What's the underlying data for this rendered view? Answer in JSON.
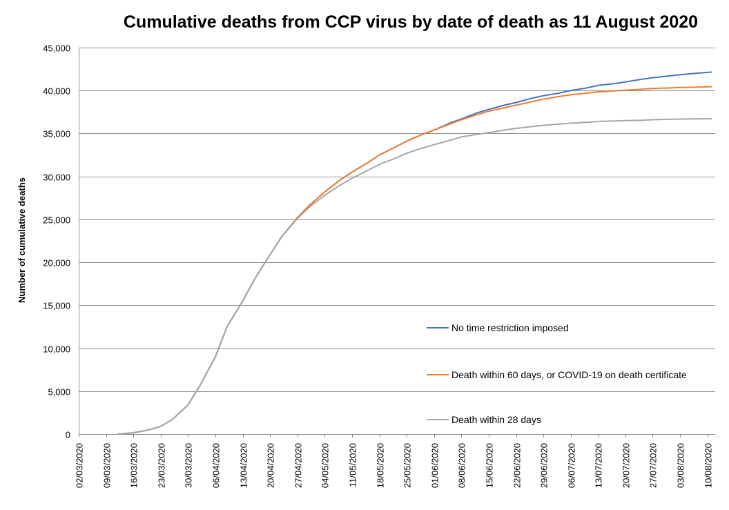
{
  "chart_data": {
    "type": "line",
    "title": "Cumulative deaths from CCP virus by date of death as 11 August 2020",
    "xlabel": "",
    "ylabel": "Number of cumulative deaths",
    "ylim": [
      0,
      45000
    ],
    "y_ticks": [
      0,
      5000,
      10000,
      15000,
      20000,
      25000,
      30000,
      35000,
      40000,
      45000
    ],
    "y_tick_labels": [
      "0",
      "5,000",
      "10,000",
      "15,000",
      "20,000",
      "25,000",
      "30,000",
      "35,000",
      "40,000",
      "45,000"
    ],
    "xlim": [
      "02/03/2020",
      "11/08/2020"
    ],
    "x_tick_labels": [
      "02/03/2020",
      "09/03/2020",
      "16/03/2020",
      "23/03/2020",
      "30/03/2020",
      "06/04/2020",
      "13/04/2020",
      "20/04/2020",
      "27/04/2020",
      "04/05/2020",
      "11/05/2020",
      "18/05/2020",
      "25/05/2020",
      "01/06/2020",
      "08/06/2020",
      "15/06/2020",
      "22/06/2020",
      "29/06/2020",
      "06/07/2020",
      "13/07/2020",
      "20/07/2020",
      "27/07/2020",
      "03/08/2020",
      "10/08/2020"
    ],
    "grid": true,
    "legend_position": "inside-bottom-right",
    "series": [
      {
        "name": "No time restriction imposed",
        "color": "#4472c4",
        "points": [
          [
            "12/03/2020",
            0
          ],
          [
            "16/03/2020",
            150
          ],
          [
            "20/03/2020",
            500
          ],
          [
            "23/03/2020",
            900
          ],
          [
            "26/03/2020",
            1700
          ],
          [
            "30/03/2020",
            3400
          ],
          [
            "02/04/2020",
            5600
          ],
          [
            "06/04/2020",
            9000
          ],
          [
            "09/04/2020",
            12500
          ],
          [
            "13/04/2020",
            15500
          ],
          [
            "16/04/2020",
            18000
          ],
          [
            "20/04/2020",
            20900
          ],
          [
            "23/04/2020",
            23000
          ],
          [
            "27/04/2020",
            25200
          ],
          [
            "30/04/2020",
            26600
          ],
          [
            "04/05/2020",
            28200
          ],
          [
            "08/05/2020",
            29600
          ],
          [
            "11/05/2020",
            30500
          ],
          [
            "15/05/2020",
            31600
          ],
          [
            "18/05/2020",
            32500
          ],
          [
            "22/05/2020",
            33400
          ],
          [
            "25/05/2020",
            34100
          ],
          [
            "29/05/2020",
            34900
          ],
          [
            "01/06/2020",
            35400
          ],
          [
            "05/06/2020",
            36200
          ],
          [
            "08/06/2020",
            36700
          ],
          [
            "12/06/2020",
            37400
          ],
          [
            "15/06/2020",
            37800
          ],
          [
            "19/06/2020",
            38300
          ],
          [
            "22/06/2020",
            38600
          ],
          [
            "26/06/2020",
            39100
          ],
          [
            "29/06/2020",
            39400
          ],
          [
            "03/07/2020",
            39700
          ],
          [
            "06/07/2020",
            40000
          ],
          [
            "10/07/2020",
            40300
          ],
          [
            "13/07/2020",
            40600
          ],
          [
            "17/07/2020",
            40800
          ],
          [
            "20/07/2020",
            41000
          ],
          [
            "24/07/2020",
            41300
          ],
          [
            "27/07/2020",
            41500
          ],
          [
            "31/07/2020",
            41700
          ],
          [
            "03/08/2020",
            41850
          ],
          [
            "07/08/2020",
            42000
          ],
          [
            "11/08/2020",
            42150
          ]
        ]
      },
      {
        "name": "Death within 60 days, or COVID-19 on death certificate",
        "color": "#ed7d31",
        "points": [
          [
            "12/03/2020",
            0
          ],
          [
            "16/03/2020",
            150
          ],
          [
            "20/03/2020",
            500
          ],
          [
            "23/03/2020",
            900
          ],
          [
            "26/03/2020",
            1700
          ],
          [
            "30/03/2020",
            3400
          ],
          [
            "02/04/2020",
            5600
          ],
          [
            "06/04/2020",
            9000
          ],
          [
            "09/04/2020",
            12500
          ],
          [
            "13/04/2020",
            15500
          ],
          [
            "16/04/2020",
            18000
          ],
          [
            "20/04/2020",
            20900
          ],
          [
            "23/04/2020",
            23000
          ],
          [
            "27/04/2020",
            25200
          ],
          [
            "30/04/2020",
            26600
          ],
          [
            "04/05/2020",
            28200
          ],
          [
            "08/05/2020",
            29600
          ],
          [
            "11/05/2020",
            30500
          ],
          [
            "15/05/2020",
            31600
          ],
          [
            "18/05/2020",
            32500
          ],
          [
            "22/05/2020",
            33400
          ],
          [
            "25/05/2020",
            34100
          ],
          [
            "29/05/2020",
            34900
          ],
          [
            "01/06/2020",
            35400
          ],
          [
            "05/06/2020",
            36100
          ],
          [
            "08/06/2020",
            36600
          ],
          [
            "12/06/2020",
            37200
          ],
          [
            "15/06/2020",
            37600
          ],
          [
            "19/06/2020",
            38000
          ],
          [
            "22/06/2020",
            38300
          ],
          [
            "26/06/2020",
            38700
          ],
          [
            "29/06/2020",
            39000
          ],
          [
            "03/07/2020",
            39300
          ],
          [
            "06/07/2020",
            39500
          ],
          [
            "10/07/2020",
            39700
          ],
          [
            "13/07/2020",
            39850
          ],
          [
            "17/07/2020",
            39950
          ],
          [
            "20/07/2020",
            40050
          ],
          [
            "24/07/2020",
            40150
          ],
          [
            "27/07/2020",
            40250
          ],
          [
            "31/07/2020",
            40300
          ],
          [
            "03/08/2020",
            40350
          ],
          [
            "07/08/2020",
            40400
          ],
          [
            "11/08/2020",
            40450
          ]
        ]
      },
      {
        "name": "Death within 28 days",
        "color": "#a5a5a5",
        "points": [
          [
            "12/03/2020",
            0
          ],
          [
            "16/03/2020",
            150
          ],
          [
            "20/03/2020",
            500
          ],
          [
            "23/03/2020",
            900
          ],
          [
            "26/03/2020",
            1700
          ],
          [
            "30/03/2020",
            3400
          ],
          [
            "02/04/2020",
            5600
          ],
          [
            "06/04/2020",
            9000
          ],
          [
            "09/04/2020",
            12500
          ],
          [
            "13/04/2020",
            15500
          ],
          [
            "16/04/2020",
            18000
          ],
          [
            "20/04/2020",
            20900
          ],
          [
            "23/04/2020",
            23000
          ],
          [
            "27/04/2020",
            25100
          ],
          [
            "30/04/2020",
            26400
          ],
          [
            "04/05/2020",
            27800
          ],
          [
            "08/05/2020",
            29000
          ],
          [
            "11/05/2020",
            29800
          ],
          [
            "15/05/2020",
            30700
          ],
          [
            "18/05/2020",
            31400
          ],
          [
            "22/05/2020",
            32100
          ],
          [
            "25/05/2020",
            32700
          ],
          [
            "29/05/2020",
            33300
          ],
          [
            "01/06/2020",
            33700
          ],
          [
            "05/06/2020",
            34200
          ],
          [
            "08/06/2020",
            34600
          ],
          [
            "12/06/2020",
            34900
          ],
          [
            "15/06/2020",
            35100
          ],
          [
            "19/06/2020",
            35400
          ],
          [
            "22/06/2020",
            35600
          ],
          [
            "26/06/2020",
            35800
          ],
          [
            "29/06/2020",
            35950
          ],
          [
            "03/07/2020",
            36100
          ],
          [
            "06/07/2020",
            36200
          ],
          [
            "10/07/2020",
            36300
          ],
          [
            "13/07/2020",
            36400
          ],
          [
            "17/07/2020",
            36450
          ],
          [
            "20/07/2020",
            36500
          ],
          [
            "24/07/2020",
            36550
          ],
          [
            "27/07/2020",
            36600
          ],
          [
            "31/07/2020",
            36650
          ],
          [
            "03/08/2020",
            36680
          ],
          [
            "07/08/2020",
            36700
          ],
          [
            "11/08/2020",
            36720
          ]
        ]
      }
    ]
  }
}
